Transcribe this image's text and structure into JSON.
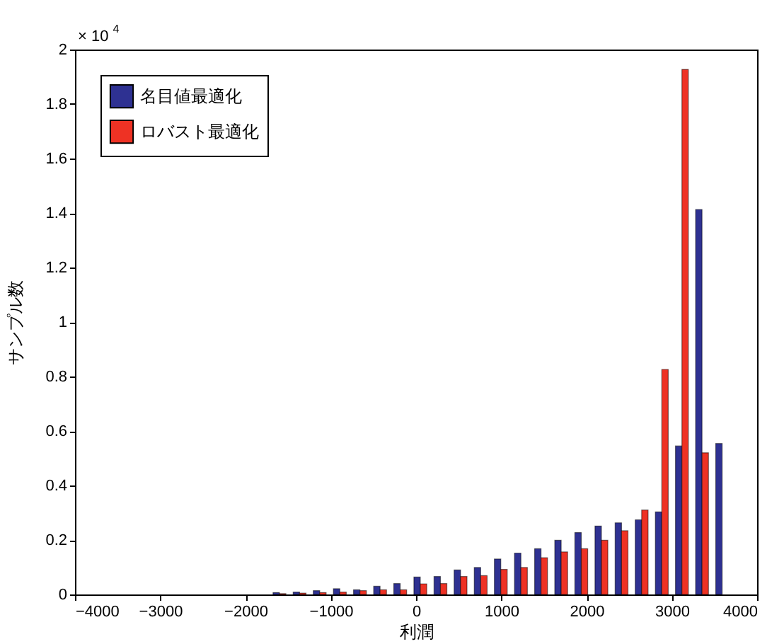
{
  "chart_data": {
    "type": "bar",
    "xlabel": "利潤",
    "ylabel": "サンプル数",
    "annotations": [
      "× 10$^{4}$"
    ],
    "x": [
      -1602,
      -1366,
      -1130,
      -894,
      -658,
      -422,
      -186,
      50,
      286,
      522,
      758,
      994,
      1230,
      1466,
      1702,
      1938,
      2174,
      2410,
      2646,
      2882,
      3118,
      3354,
      3590
    ],
    "series": [
      {
        "name": "名目値最適化",
        "color": "#2e3192",
        "values": [
          0.007,
          0.009,
          0.014,
          0.021,
          0.017,
          0.03,
          0.04,
          0.064,
          0.066,
          0.09,
          0.099,
          0.13,
          0.152,
          0.168,
          0.199,
          0.227,
          0.251,
          0.263,
          0.274,
          0.303,
          0.545,
          1.413,
          0.554
        ]
      },
      {
        "name": "ロバスト最適化",
        "color": "#ee3224",
        "values": [
          0.003,
          0.005,
          0.007,
          0.009,
          0.014,
          0.017,
          0.017,
          0.039,
          0.04,
          0.066,
          0.069,
          0.092,
          0.099,
          0.135,
          0.156,
          0.168,
          0.199,
          0.234,
          0.31,
          0.826,
          1.927,
          0.52,
          null
        ]
      }
    ],
    "xlim": [
      -4000,
      4000
    ],
    "xticks": [
      -4000,
      -3000,
      -2000,
      -1000,
      0,
      1000,
      2000,
      3000,
      4000
    ],
    "ylim": [
      0,
      2
    ],
    "yticks": [
      0,
      0.2,
      0.4,
      0.6,
      0.8,
      1,
      1.2,
      1.4,
      1.6,
      1.8,
      2
    ],
    "legend": "top left",
    "grid": false
  }
}
